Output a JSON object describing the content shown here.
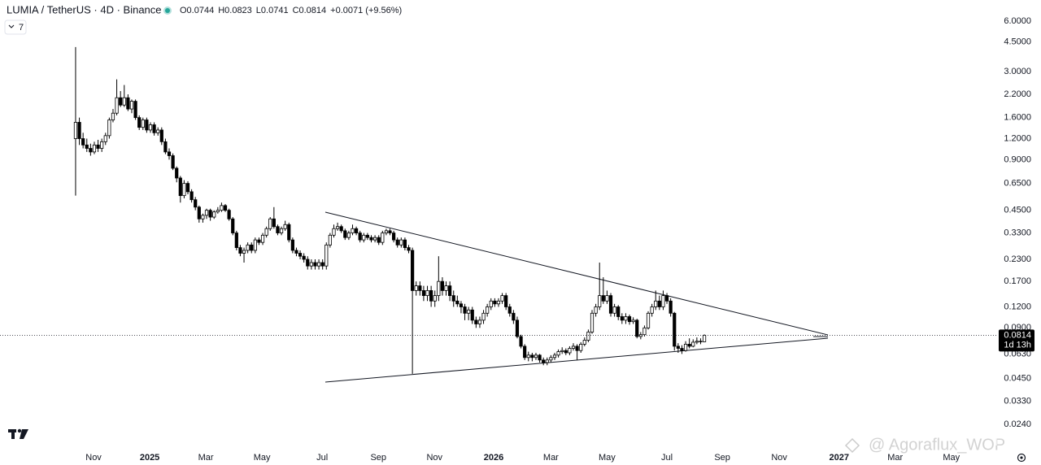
{
  "chart_data": {
    "type": "candlestick",
    "title": "LUMIA / TetherUS · 4D · Binance",
    "ohlc_readout": [
      "O0.0744",
      "H0.0823",
      "L0.0741",
      "C0.0814",
      "+0.0071 (+9.56%)"
    ],
    "indicator_count": "7",
    "countdown": "1d 13h",
    "watermark": "@ Agoraflux_WOP",
    "log_scale": true,
    "up_color": "#ffffff",
    "down_color": "#000000",
    "outline_color": "#000000",
    "xlim": [
      -20.2,
      246
    ],
    "ylim": [
      0.018,
      8.0
    ],
    "xticks": [
      {
        "value": 4.8,
        "label": "Nov"
      },
      {
        "value": 19.8,
        "label": "2025"
      },
      {
        "value": 34.8,
        "label": "Mar"
      },
      {
        "value": 49.8,
        "label": "May"
      },
      {
        "value": 65.9,
        "label": "Jul"
      },
      {
        "value": 80.9,
        "label": "Sep"
      },
      {
        "value": 95.9,
        "label": "Nov"
      },
      {
        "value": 111.7,
        "label": "2026"
      },
      {
        "value": 127,
        "label": "Mar"
      },
      {
        "value": 142,
        "label": "May"
      },
      {
        "value": 158,
        "label": "Jul"
      },
      {
        "value": 172.8,
        "label": "Sep"
      },
      {
        "value": 188,
        "label": "Nov"
      },
      {
        "value": 204,
        "label": "2027"
      },
      {
        "value": 219,
        "label": "Mar"
      },
      {
        "value": 234,
        "label": "May"
      }
    ],
    "yticks": [
      {
        "value": 6,
        "label": "6.0000"
      },
      {
        "value": 4.5,
        "label": "4.5000"
      },
      {
        "value": 3,
        "label": "3.0000"
      },
      {
        "value": 2.2,
        "label": "2.2000"
      },
      {
        "value": 1.6,
        "label": "1.6000"
      },
      {
        "value": 1.2,
        "label": "1.2000"
      },
      {
        "value": 0.9,
        "label": "0.9000"
      },
      {
        "value": 0.65,
        "label": "0.6500"
      },
      {
        "value": 0.45,
        "label": "0.4500"
      },
      {
        "value": 0.33,
        "label": "0.3300"
      },
      {
        "value": 0.23,
        "label": "0.2300"
      },
      {
        "value": 0.17,
        "label": "0.1700"
      },
      {
        "value": 0.12,
        "label": "0.1200"
      },
      {
        "value": 0.09,
        "label": "0.0900"
      },
      {
        "value": 0.063,
        "label": "0.0630"
      },
      {
        "value": 0.045,
        "label": "0.0450"
      },
      {
        "value": 0.033,
        "label": "0.0330"
      },
      {
        "value": 0.024,
        "label": "0.0240"
      }
    ],
    "candles": [
      [
        1.2,
        4.2,
        0.55,
        1.5
      ],
      [
        1.5,
        1.6,
        1.1,
        1.2
      ],
      [
        1.2,
        1.3,
        1.05,
        1.1
      ],
      [
        1.1,
        1.2,
        1.0,
        1.05
      ],
      [
        1.05,
        1.12,
        0.95,
        1.0
      ],
      [
        1.0,
        1.15,
        0.97,
        1.1
      ],
      [
        1.1,
        1.18,
        1.0,
        1.05
      ],
      [
        1.05,
        1.2,
        1.0,
        1.15
      ],
      [
        1.15,
        1.3,
        1.1,
        1.25
      ],
      [
        1.25,
        1.6,
        1.2,
        1.55
      ],
      [
        1.55,
        1.8,
        1.5,
        1.7
      ],
      [
        1.7,
        2.7,
        1.65,
        2.1
      ],
      [
        2.1,
        2.3,
        1.85,
        1.9
      ],
      [
        1.9,
        2.5,
        1.85,
        2.1
      ],
      [
        2.1,
        2.2,
        1.75,
        1.8
      ],
      [
        1.8,
        2.05,
        1.7,
        2.0
      ],
      [
        2.0,
        2.05,
        1.55,
        1.6
      ],
      [
        1.6,
        1.65,
        1.35,
        1.4
      ],
      [
        1.4,
        1.6,
        1.35,
        1.55
      ],
      [
        1.55,
        1.6,
        1.3,
        1.35
      ],
      [
        1.35,
        1.5,
        1.3,
        1.45
      ],
      [
        1.45,
        1.5,
        1.25,
        1.3
      ],
      [
        1.3,
        1.4,
        1.25,
        1.35
      ],
      [
        1.35,
        1.4,
        1.1,
        1.15
      ],
      [
        1.15,
        1.2,
        0.97,
        1.0
      ],
      [
        1.0,
        1.05,
        0.9,
        0.95
      ],
      [
        0.95,
        0.98,
        0.78,
        0.8
      ],
      [
        0.8,
        0.82,
        0.66,
        0.7
      ],
      [
        0.7,
        0.72,
        0.5,
        0.55
      ],
      [
        0.55,
        0.68,
        0.53,
        0.65
      ],
      [
        0.65,
        0.67,
        0.56,
        0.58
      ],
      [
        0.58,
        0.6,
        0.5,
        0.52
      ],
      [
        0.52,
        0.54,
        0.45,
        0.47
      ],
      [
        0.47,
        0.48,
        0.38,
        0.4
      ],
      [
        0.4,
        0.43,
        0.38,
        0.42
      ],
      [
        0.42,
        0.46,
        0.4,
        0.45
      ],
      [
        0.45,
        0.46,
        0.39,
        0.41
      ],
      [
        0.41,
        0.45,
        0.4,
        0.44
      ],
      [
        0.44,
        0.47,
        0.43,
        0.45
      ],
      [
        0.45,
        0.5,
        0.44,
        0.48
      ],
      [
        0.48,
        0.49,
        0.44,
        0.45
      ],
      [
        0.45,
        0.46,
        0.39,
        0.4
      ],
      [
        0.4,
        0.41,
        0.32,
        0.33
      ],
      [
        0.33,
        0.34,
        0.26,
        0.27
      ],
      [
        0.27,
        0.28,
        0.24,
        0.25
      ],
      [
        0.25,
        0.27,
        0.22,
        0.26
      ],
      [
        0.26,
        0.29,
        0.25,
        0.28
      ],
      [
        0.28,
        0.29,
        0.25,
        0.26
      ],
      [
        0.26,
        0.31,
        0.25,
        0.3
      ],
      [
        0.3,
        0.31,
        0.28,
        0.29
      ],
      [
        0.29,
        0.33,
        0.28,
        0.32
      ],
      [
        0.32,
        0.36,
        0.31,
        0.35
      ],
      [
        0.35,
        0.41,
        0.34,
        0.4
      ],
      [
        0.4,
        0.47,
        0.35,
        0.36
      ],
      [
        0.36,
        0.37,
        0.32,
        0.33
      ],
      [
        0.33,
        0.36,
        0.32,
        0.35
      ],
      [
        0.35,
        0.39,
        0.34,
        0.37
      ],
      [
        0.37,
        0.38,
        0.29,
        0.3
      ],
      [
        0.3,
        0.31,
        0.25,
        0.26
      ],
      [
        0.26,
        0.27,
        0.24,
        0.25
      ],
      [
        0.25,
        0.26,
        0.23,
        0.24
      ],
      [
        0.24,
        0.25,
        0.22,
        0.23
      ],
      [
        0.23,
        0.24,
        0.2,
        0.21
      ],
      [
        0.21,
        0.23,
        0.2,
        0.22
      ],
      [
        0.22,
        0.23,
        0.2,
        0.21
      ],
      [
        0.21,
        0.23,
        0.2,
        0.22
      ],
      [
        0.22,
        0.23,
        0.2,
        0.21
      ],
      [
        0.21,
        0.29,
        0.2,
        0.28
      ],
      [
        0.28,
        0.33,
        0.27,
        0.32
      ],
      [
        0.32,
        0.37,
        0.31,
        0.35
      ],
      [
        0.35,
        0.38,
        0.34,
        0.36
      ],
      [
        0.36,
        0.37,
        0.33,
        0.34
      ],
      [
        0.34,
        0.35,
        0.3,
        0.31
      ],
      [
        0.31,
        0.34,
        0.3,
        0.33
      ],
      [
        0.33,
        0.37,
        0.32,
        0.35
      ],
      [
        0.35,
        0.36,
        0.32,
        0.33
      ],
      [
        0.33,
        0.34,
        0.29,
        0.3
      ],
      [
        0.3,
        0.33,
        0.29,
        0.32
      ],
      [
        0.32,
        0.33,
        0.3,
        0.31
      ],
      [
        0.31,
        0.32,
        0.29,
        0.3
      ],
      [
        0.3,
        0.32,
        0.29,
        0.31
      ],
      [
        0.31,
        0.32,
        0.28,
        0.29
      ],
      [
        0.29,
        0.34,
        0.28,
        0.33
      ],
      [
        0.33,
        0.35,
        0.32,
        0.34
      ],
      [
        0.34,
        0.35,
        0.32,
        0.33
      ],
      [
        0.33,
        0.34,
        0.29,
        0.3
      ],
      [
        0.3,
        0.31,
        0.27,
        0.28
      ],
      [
        0.28,
        0.31,
        0.27,
        0.3
      ],
      [
        0.3,
        0.31,
        0.26,
        0.27
      ],
      [
        0.27,
        0.28,
        0.25,
        0.26
      ],
      [
        0.26,
        0.27,
        0.048,
        0.15
      ],
      [
        0.15,
        0.17,
        0.14,
        0.16
      ],
      [
        0.16,
        0.17,
        0.14,
        0.15
      ],
      [
        0.15,
        0.16,
        0.13,
        0.14
      ],
      [
        0.14,
        0.16,
        0.13,
        0.15
      ],
      [
        0.15,
        0.16,
        0.12,
        0.13
      ],
      [
        0.13,
        0.15,
        0.12,
        0.14
      ],
      [
        0.14,
        0.24,
        0.13,
        0.17
      ],
      [
        0.17,
        0.18,
        0.14,
        0.15
      ],
      [
        0.15,
        0.17,
        0.14,
        0.16
      ],
      [
        0.16,
        0.17,
        0.13,
        0.14
      ],
      [
        0.14,
        0.15,
        0.12,
        0.13
      ],
      [
        0.13,
        0.14,
        0.12,
        0.125
      ],
      [
        0.125,
        0.13,
        0.11,
        0.12
      ],
      [
        0.12,
        0.125,
        0.1,
        0.11
      ],
      [
        0.11,
        0.12,
        0.1,
        0.115
      ],
      [
        0.115,
        0.12,
        0.095,
        0.1
      ],
      [
        0.1,
        0.105,
        0.09,
        0.095
      ],
      [
        0.095,
        0.105,
        0.09,
        0.1
      ],
      [
        0.1,
        0.115,
        0.095,
        0.11
      ],
      [
        0.11,
        0.125,
        0.105,
        0.12
      ],
      [
        0.12,
        0.135,
        0.115,
        0.13
      ],
      [
        0.13,
        0.135,
        0.12,
        0.125
      ],
      [
        0.125,
        0.135,
        0.12,
        0.13
      ],
      [
        0.13,
        0.145,
        0.125,
        0.14
      ],
      [
        0.14,
        0.145,
        0.115,
        0.12
      ],
      [
        0.12,
        0.125,
        0.105,
        0.11
      ],
      [
        0.11,
        0.115,
        0.095,
        0.1
      ],
      [
        0.1,
        0.105,
        0.078,
        0.08
      ],
      [
        0.08,
        0.082,
        0.068,
        0.07
      ],
      [
        0.07,
        0.072,
        0.058,
        0.06
      ],
      [
        0.06,
        0.065,
        0.057,
        0.062
      ],
      [
        0.062,
        0.064,
        0.057,
        0.06
      ],
      [
        0.06,
        0.064,
        0.058,
        0.062
      ],
      [
        0.062,
        0.063,
        0.056,
        0.058
      ],
      [
        0.058,
        0.06,
        0.054,
        0.056
      ],
      [
        0.056,
        0.06,
        0.054,
        0.058
      ],
      [
        0.058,
        0.062,
        0.056,
        0.06
      ],
      [
        0.06,
        0.064,
        0.058,
        0.062
      ],
      [
        0.062,
        0.067,
        0.06,
        0.065
      ],
      [
        0.065,
        0.069,
        0.063,
        0.066
      ],
      [
        0.066,
        0.068,
        0.062,
        0.064
      ],
      [
        0.064,
        0.07,
        0.062,
        0.068
      ],
      [
        0.068,
        0.073,
        0.066,
        0.07
      ],
      [
        0.07,
        0.072,
        0.058,
        0.066
      ],
      [
        0.066,
        0.074,
        0.064,
        0.072
      ],
      [
        0.072,
        0.079,
        0.07,
        0.076
      ],
      [
        0.076,
        0.088,
        0.074,
        0.085
      ],
      [
        0.085,
        0.115,
        0.083,
        0.11
      ],
      [
        0.11,
        0.125,
        0.105,
        0.12
      ],
      [
        0.12,
        0.22,
        0.115,
        0.14
      ],
      [
        0.14,
        0.18,
        0.125,
        0.13
      ],
      [
        0.13,
        0.15,
        0.125,
        0.14
      ],
      [
        0.14,
        0.145,
        0.105,
        0.11
      ],
      [
        0.11,
        0.125,
        0.105,
        0.12
      ],
      [
        0.12,
        0.123,
        0.1,
        0.105
      ],
      [
        0.105,
        0.11,
        0.095,
        0.1
      ],
      [
        0.1,
        0.11,
        0.095,
        0.105
      ],
      [
        0.105,
        0.108,
        0.094,
        0.098
      ],
      [
        0.098,
        0.104,
        0.095,
        0.1
      ],
      [
        0.1,
        0.102,
        0.078,
        0.08
      ],
      [
        0.08,
        0.085,
        0.077,
        0.082
      ],
      [
        0.082,
        0.093,
        0.08,
        0.09
      ],
      [
        0.09,
        0.113,
        0.088,
        0.11
      ],
      [
        0.11,
        0.125,
        0.105,
        0.12
      ],
      [
        0.12,
        0.15,
        0.115,
        0.13
      ],
      [
        0.13,
        0.14,
        0.115,
        0.12
      ],
      [
        0.12,
        0.15,
        0.115,
        0.14
      ],
      [
        0.14,
        0.145,
        0.125,
        0.13
      ],
      [
        0.13,
        0.135,
        0.105,
        0.11
      ],
      [
        0.11,
        0.112,
        0.066,
        0.07
      ],
      [
        0.07,
        0.073,
        0.064,
        0.068
      ],
      [
        0.068,
        0.071,
        0.063,
        0.066
      ],
      [
        0.066,
        0.075,
        0.065,
        0.072
      ],
      [
        0.072,
        0.078,
        0.068,
        0.07
      ],
      [
        0.07,
        0.077,
        0.069,
        0.074
      ],
      [
        0.074,
        0.079,
        0.072,
        0.075
      ],
      [
        0.075,
        0.078,
        0.072,
        0.0744
      ],
      [
        0.0744,
        0.0823,
        0.0741,
        0.0814
      ]
    ]
  }
}
